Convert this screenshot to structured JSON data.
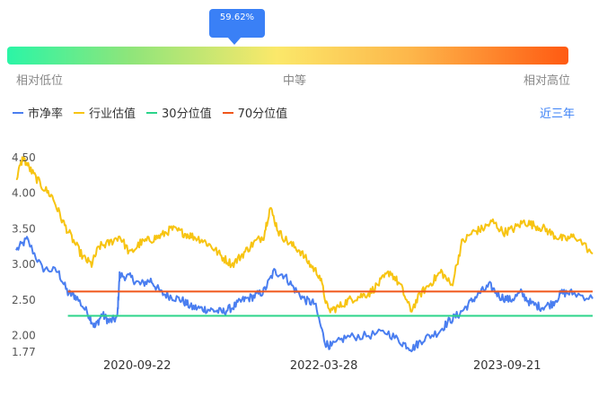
{
  "gauge": {
    "percentile_label": "59.62%",
    "percentile": 0.5962,
    "low_label": "相对低位",
    "mid_label": "中等",
    "high_label": "相对高位"
  },
  "legend": [
    {
      "label": "市净率",
      "color": "#4a7ef0"
    },
    {
      "label": "行业估值",
      "color": "#f7c412"
    },
    {
      "label": "30分位值",
      "color": "#2bd48a"
    },
    {
      "label": "70分位值",
      "color": "#f0561a"
    }
  ],
  "period_label": "近三年",
  "chart_data": {
    "type": "line",
    "ylim": [
      1.77,
      4.6
    ],
    "y_ticks": [
      "4.50",
      "4.00",
      "3.50",
      "3.00",
      "2.50",
      "2.00",
      "1.77"
    ],
    "x_ticks": [
      "2020-09-22",
      "2022-03-28",
      "2023-09-21"
    ],
    "x_range": [
      "2019-09-30",
      "2024-05-31"
    ],
    "series": [
      {
        "name": "市净率",
        "color": "#4a7ef0",
        "points": [
          [
            "2019-09-30",
            3.2
          ],
          [
            "2019-11-01",
            3.35
          ],
          [
            "2019-12-15",
            2.95
          ],
          [
            "2020-02-01",
            2.9
          ],
          [
            "2020-03-01",
            2.6
          ],
          [
            "2020-03-25",
            2.55
          ],
          [
            "2020-05-01",
            2.3
          ],
          [
            "2020-05-20",
            2.12
          ],
          [
            "2020-06-10",
            2.3
          ],
          [
            "2020-07-01",
            2.2
          ],
          [
            "2020-07-25",
            2.25
          ],
          [
            "2020-08-01",
            2.85
          ],
          [
            "2020-09-01",
            2.82
          ],
          [
            "2020-10-01",
            2.72
          ],
          [
            "2020-11-01",
            2.78
          ],
          [
            "2020-12-01",
            2.6
          ],
          [
            "2021-01-01",
            2.55
          ],
          [
            "2021-02-01",
            2.5
          ],
          [
            "2021-03-01",
            2.4
          ],
          [
            "2021-04-01",
            2.38
          ],
          [
            "2021-05-01",
            2.36
          ],
          [
            "2021-06-01",
            2.33
          ],
          [
            "2021-07-01",
            2.4
          ],
          [
            "2021-08-01",
            2.5
          ],
          [
            "2021-09-01",
            2.55
          ],
          [
            "2021-10-01",
            2.62
          ],
          [
            "2021-11-01",
            2.9
          ],
          [
            "2021-12-01",
            2.85
          ],
          [
            "2022-01-01",
            2.65
          ],
          [
            "2022-02-01",
            2.5
          ],
          [
            "2022-03-01",
            2.45
          ],
          [
            "2022-04-01",
            1.9
          ],
          [
            "2022-04-20",
            1.85
          ],
          [
            "2022-06-01",
            1.98
          ],
          [
            "2022-08-01",
            2.0
          ],
          [
            "2022-10-01",
            2.05
          ],
          [
            "2022-11-15",
            1.9
          ],
          [
            "2022-12-15",
            1.82
          ],
          [
            "2023-01-15",
            1.95
          ],
          [
            "2023-03-01",
            2.05
          ],
          [
            "2023-04-01",
            2.2
          ],
          [
            "2023-05-01",
            2.3
          ],
          [
            "2023-06-01",
            2.45
          ],
          [
            "2023-07-01",
            2.6
          ],
          [
            "2023-08-01",
            2.7
          ],
          [
            "2023-09-01",
            2.55
          ],
          [
            "2023-10-01",
            2.5
          ],
          [
            "2023-11-01",
            2.6
          ],
          [
            "2023-12-01",
            2.45
          ],
          [
            "2024-01-01",
            2.4
          ],
          [
            "2024-02-01",
            2.45
          ],
          [
            "2024-03-01",
            2.6
          ],
          [
            "2024-04-01",
            2.6
          ],
          [
            "2024-05-31",
            2.52
          ]
        ]
      },
      {
        "name": "行业估值",
        "color": "#f7c412",
        "points": [
          [
            "2019-09-30",
            4.2
          ],
          [
            "2019-10-20",
            4.5
          ],
          [
            "2019-11-15",
            4.3
          ],
          [
            "2019-12-15",
            4.1
          ],
          [
            "2020-01-15",
            3.95
          ],
          [
            "2020-02-15",
            3.6
          ],
          [
            "2020-03-15",
            3.35
          ],
          [
            "2020-04-15",
            3.1
          ],
          [
            "2020-05-10",
            3.0
          ],
          [
            "2020-06-01",
            3.25
          ],
          [
            "2020-07-01",
            3.3
          ],
          [
            "2020-08-01",
            3.4
          ],
          [
            "2020-09-01",
            3.15
          ],
          [
            "2020-10-01",
            3.3
          ],
          [
            "2020-11-01",
            3.35
          ],
          [
            "2020-12-01",
            3.4
          ],
          [
            "2021-01-01",
            3.5
          ],
          [
            "2021-02-01",
            3.45
          ],
          [
            "2021-03-01",
            3.4
          ],
          [
            "2021-04-01",
            3.35
          ],
          [
            "2021-05-01",
            3.25
          ],
          [
            "2021-06-01",
            3.1
          ],
          [
            "2021-07-01",
            3.0
          ],
          [
            "2021-08-01",
            3.15
          ],
          [
            "2021-09-01",
            3.3
          ],
          [
            "2021-10-01",
            3.4
          ],
          [
            "2021-10-20",
            3.8
          ],
          [
            "2021-11-15",
            3.45
          ],
          [
            "2021-12-15",
            3.3
          ],
          [
            "2022-01-15",
            3.2
          ],
          [
            "2022-02-15",
            3.0
          ],
          [
            "2022-03-15",
            2.85
          ],
          [
            "2022-04-10",
            2.35
          ],
          [
            "2022-05-10",
            2.4
          ],
          [
            "2022-06-10",
            2.5
          ],
          [
            "2022-07-10",
            2.55
          ],
          [
            "2022-08-10",
            2.6
          ],
          [
            "2022-09-10",
            2.75
          ],
          [
            "2022-10-10",
            2.9
          ],
          [
            "2022-11-10",
            2.7
          ],
          [
            "2022-12-10",
            2.35
          ],
          [
            "2023-01-10",
            2.6
          ],
          [
            "2023-02-10",
            2.75
          ],
          [
            "2023-03-10",
            2.9
          ],
          [
            "2023-04-10",
            2.7
          ],
          [
            "2023-05-10",
            3.3
          ],
          [
            "2023-06-10",
            3.45
          ],
          [
            "2023-07-10",
            3.5
          ],
          [
            "2023-08-10",
            3.6
          ],
          [
            "2023-09-10",
            3.45
          ],
          [
            "2023-10-10",
            3.5
          ],
          [
            "2023-11-10",
            3.6
          ],
          [
            "2023-12-10",
            3.55
          ],
          [
            "2024-01-10",
            3.5
          ],
          [
            "2024-02-10",
            3.4
          ],
          [
            "2024-03-10",
            3.35
          ],
          [
            "2024-04-10",
            3.4
          ],
          [
            "2024-05-31",
            3.15
          ]
        ]
      },
      {
        "name": "30分位值",
        "color": "#2bd48a",
        "points": [
          [
            "2020-03-01",
            2.28
          ],
          [
            "2024-05-31",
            2.28
          ]
        ]
      },
      {
        "name": "70分位值",
        "color": "#f0561a",
        "points": [
          [
            "2020-03-01",
            2.62
          ],
          [
            "2024-05-31",
            2.62
          ]
        ]
      }
    ]
  }
}
